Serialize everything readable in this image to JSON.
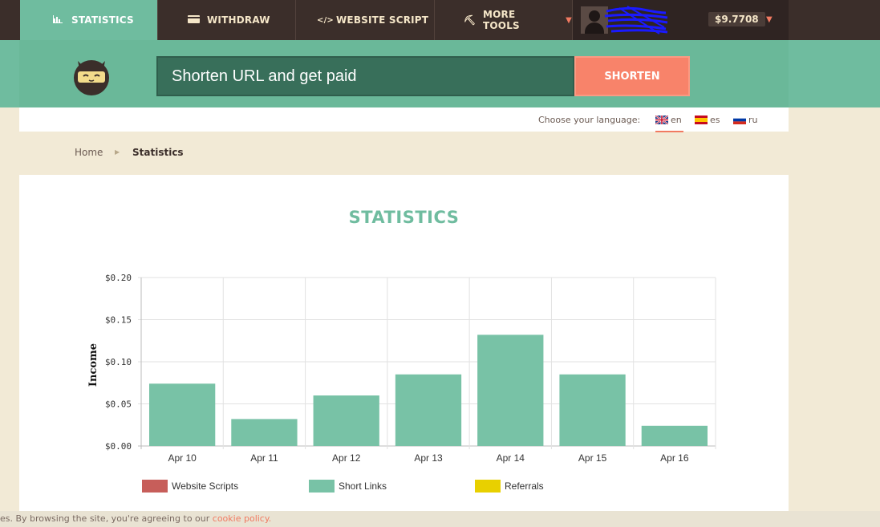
{
  "nav": {
    "items": [
      {
        "label": "STATISTICS",
        "icon": "bar-chart-icon",
        "active": true
      },
      {
        "label": "WITHDRAW",
        "icon": "credit-card-icon",
        "active": false
      },
      {
        "label": "WEBSITE SCRIPT",
        "icon": "code-icon",
        "active": false
      },
      {
        "label": "MORE TOOLS",
        "icon": "wrench-icon",
        "active": false,
        "dropdown": true
      }
    ],
    "balance": "$9.7708"
  },
  "shorten": {
    "placeholder": "Shorten URL and get paid",
    "button_label": "SHORTEN"
  },
  "language": {
    "label": "Choose your language:",
    "options": [
      {
        "code": "en",
        "icon": "uk-flag-icon",
        "active": true
      },
      {
        "code": "es",
        "icon": "spain-flag-icon",
        "active": false
      },
      {
        "code": "ru",
        "icon": "russia-flag-icon",
        "active": false
      }
    ]
  },
  "breadcrumb": {
    "home": "Home",
    "current": "Statistics"
  },
  "page": {
    "title": "STATISTICS"
  },
  "chart_data": {
    "type": "bar",
    "categories": [
      "Apr 10",
      "Apr 11",
      "Apr 12",
      "Apr 13",
      "Apr 14",
      "Apr 15",
      "Apr 16"
    ],
    "series": [
      {
        "name": "Website Scripts",
        "color": "#c75e5a",
        "values": [
          0,
          0,
          0,
          0,
          0,
          0,
          0
        ]
      },
      {
        "name": "Short Links",
        "color": "#78c2a6",
        "values": [
          0.074,
          0.032,
          0.06,
          0.085,
          0.132,
          0.085,
          0.024
        ]
      },
      {
        "name": "Referrals",
        "color": "#e8d000",
        "values": [
          0,
          0,
          0,
          0,
          0,
          0,
          0
        ]
      }
    ],
    "ylabel": "Income",
    "ylim": [
      0,
      0.2
    ],
    "yticks": [
      "$0.00",
      "$0.05",
      "$0.10",
      "$0.15",
      "$0.20"
    ],
    "grid": true,
    "legend": "bottom"
  },
  "cookie": {
    "text": "es. By browsing the site, you're agreeing to our ",
    "link": "cookie policy."
  }
}
